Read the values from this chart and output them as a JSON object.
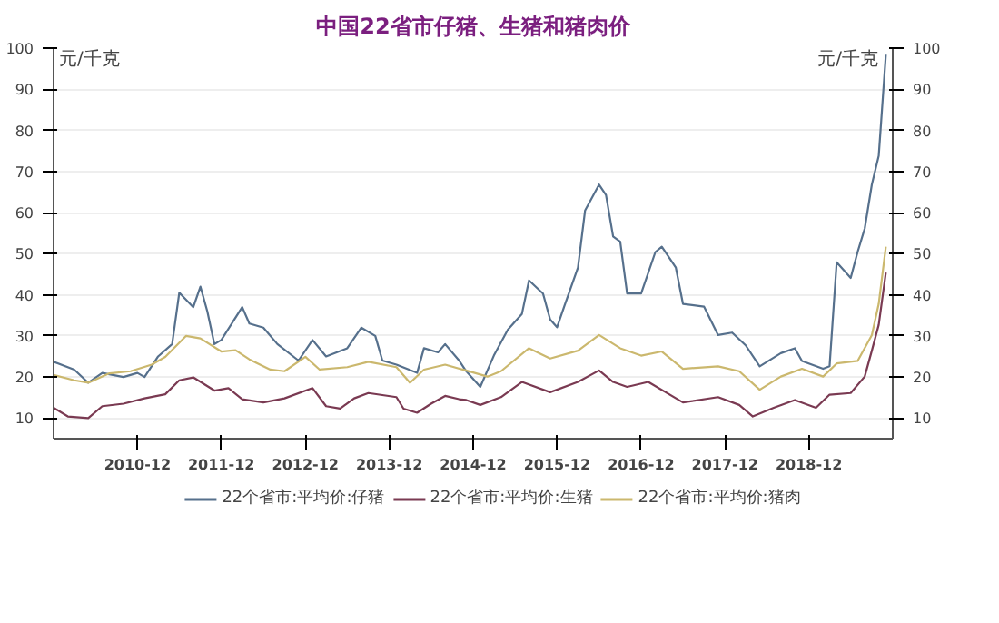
{
  "chart_data": {
    "type": "line",
    "title": "中国22省市仔猪、生猪和猪肉价",
    "ylabel": "元/千克",
    "y2label": "元/千克",
    "xlim": [
      "2009-12",
      "2019-12"
    ],
    "xticks": [
      "2010-12",
      "2011-12",
      "2012-12",
      "2013-12",
      "2014-12",
      "2015-12",
      "2016-12",
      "2017-12",
      "2018-12"
    ],
    "ylim": [
      5,
      100
    ],
    "yticks": [
      10,
      20,
      30,
      40,
      50,
      60,
      70,
      80,
      90,
      100
    ],
    "y2lim": [
      5,
      100
    ],
    "y2ticks": [
      10,
      20,
      30,
      40,
      50,
      60,
      70,
      80,
      90,
      100
    ],
    "grid": "y",
    "legend": "bottom",
    "marker": "none",
    "line_style": "solid",
    "series": [
      {
        "name": "22个省市:平均价:仔猪",
        "color": "#56708c",
        "x": [
          "2009-12",
          "2010-03",
          "2010-05",
          "2010-07",
          "2010-10",
          "2010-12",
          "2011-01",
          "2011-03",
          "2011-05",
          "2011-06",
          "2011-08",
          "2011-09",
          "2011-10",
          "2011-11",
          "2011-12",
          "2012-03",
          "2012-04",
          "2012-06",
          "2012-08",
          "2012-11",
          "2013-01",
          "2013-03",
          "2013-06",
          "2013-08",
          "2013-10",
          "2013-11",
          "2014-01",
          "2014-04",
          "2014-05",
          "2014-07",
          "2014-08",
          "2014-10",
          "2014-11",
          "2015-01",
          "2015-03",
          "2015-05",
          "2015-07",
          "2015-08",
          "2015-10",
          "2015-11",
          "2015-12",
          "2016-01",
          "2016-03",
          "2016-04",
          "2016-06",
          "2016-07",
          "2016-08",
          "2016-09",
          "2016-10",
          "2016-12",
          "2017-02",
          "2017-03",
          "2017-05",
          "2017-06",
          "2017-09",
          "2017-11",
          "2018-01",
          "2018-03",
          "2018-05",
          "2018-08",
          "2018-10",
          "2018-11",
          "2019-02",
          "2019-03",
          "2019-04",
          "2019-06",
          "2019-07",
          "2019-08",
          "2019-09",
          "2019-10",
          "2019-11"
        ],
        "values": [
          23.7,
          21.8,
          18.6,
          21,
          20,
          21,
          20,
          25,
          28,
          40.5,
          37,
          42,
          36,
          28,
          29,
          37,
          33,
          32,
          28,
          24,
          29,
          25,
          27,
          32,
          30,
          24,
          23,
          21,
          27,
          26,
          28,
          24,
          21.4,
          17.6,
          25.2,
          31.5,
          35.3,
          43.5,
          40.3,
          34,
          32.1,
          37.1,
          46.6,
          60.5,
          66.8,
          64.3,
          54.2,
          52.9,
          40.3,
          40.3,
          50.4,
          51.7,
          46.6,
          37.8,
          37.1,
          30.2,
          30.8,
          27.7,
          22.6,
          25.8,
          27,
          23.9,
          22,
          22.6,
          47.9,
          44.1,
          50.4,
          56.1,
          66.8,
          73.8,
          98.4
        ]
      },
      {
        "name": "22个省市:平均价:生猪",
        "color": "#7a3a52",
        "x": [
          "2009-12",
          "2010-02",
          "2010-05",
          "2010-07",
          "2010-10",
          "2011-01",
          "2011-04",
          "2011-06",
          "2011-08",
          "2011-11",
          "2012-01",
          "2012-03",
          "2012-06",
          "2012-09",
          "2013-01",
          "2013-03",
          "2013-05",
          "2013-07",
          "2013-09",
          "2014-01",
          "2014-02",
          "2014-04",
          "2014-06",
          "2014-08",
          "2014-10",
          "2014-11",
          "2015-01",
          "2015-04",
          "2015-07",
          "2015-11",
          "2016-03",
          "2016-06",
          "2016-08",
          "2016-10",
          "2017-01",
          "2017-06",
          "2017-11",
          "2018-02",
          "2018-04",
          "2018-07",
          "2018-10",
          "2019-01",
          "2019-03",
          "2019-06",
          "2019-08",
          "2019-09",
          "2019-10",
          "2019-11"
        ],
        "values": [
          12.5,
          10.4,
          10,
          12.9,
          13.5,
          14.8,
          15.8,
          19.2,
          19.9,
          16.7,
          17.3,
          14.6,
          13.8,
          14.8,
          17.3,
          12.9,
          12.3,
          14.8,
          16.1,
          15.1,
          12.3,
          11.3,
          13.5,
          15.4,
          14.6,
          14.4,
          13.2,
          15.1,
          18.8,
          16.3,
          18.8,
          21.6,
          18.8,
          17.6,
          18.8,
          13.8,
          15.1,
          13.2,
          10.4,
          12.5,
          14.4,
          12.5,
          15.7,
          16.1,
          20.1,
          26.4,
          32.7,
          45.4
        ]
      },
      {
        "name": "22个省市:平均价:猪肉",
        "color": "#cbb86e",
        "x": [
          "2009-12",
          "2010-03",
          "2010-05",
          "2010-08",
          "2010-11",
          "2011-02",
          "2011-04",
          "2011-07",
          "2011-09",
          "2011-12",
          "2012-02",
          "2012-04",
          "2012-07",
          "2012-09",
          "2012-12",
          "2013-02",
          "2013-06",
          "2013-09",
          "2014-01",
          "2014-03",
          "2014-05",
          "2014-08",
          "2014-12",
          "2015-02",
          "2015-04",
          "2015-08",
          "2015-11",
          "2016-03",
          "2016-06",
          "2016-09",
          "2016-12",
          "2017-03",
          "2017-06",
          "2017-11",
          "2018-02",
          "2018-05",
          "2018-08",
          "2018-11",
          "2019-02",
          "2019-04",
          "2019-07",
          "2019-09",
          "2019-10",
          "2019-11"
        ],
        "values": [
          20.5,
          19.2,
          18.6,
          20.9,
          21.4,
          23,
          24.9,
          30,
          29.4,
          26.2,
          26.5,
          24.3,
          21.8,
          21.4,
          24.9,
          21.8,
          22.4,
          23.7,
          22.4,
          18.6,
          21.8,
          23,
          21.1,
          20.1,
          21.4,
          27,
          24.5,
          26.4,
          30.2,
          27,
          25.2,
          26.2,
          22,
          22.6,
          21.4,
          16.9,
          20.1,
          22,
          20.1,
          23.3,
          23.9,
          30.2,
          37.8,
          51.7
        ]
      }
    ]
  }
}
